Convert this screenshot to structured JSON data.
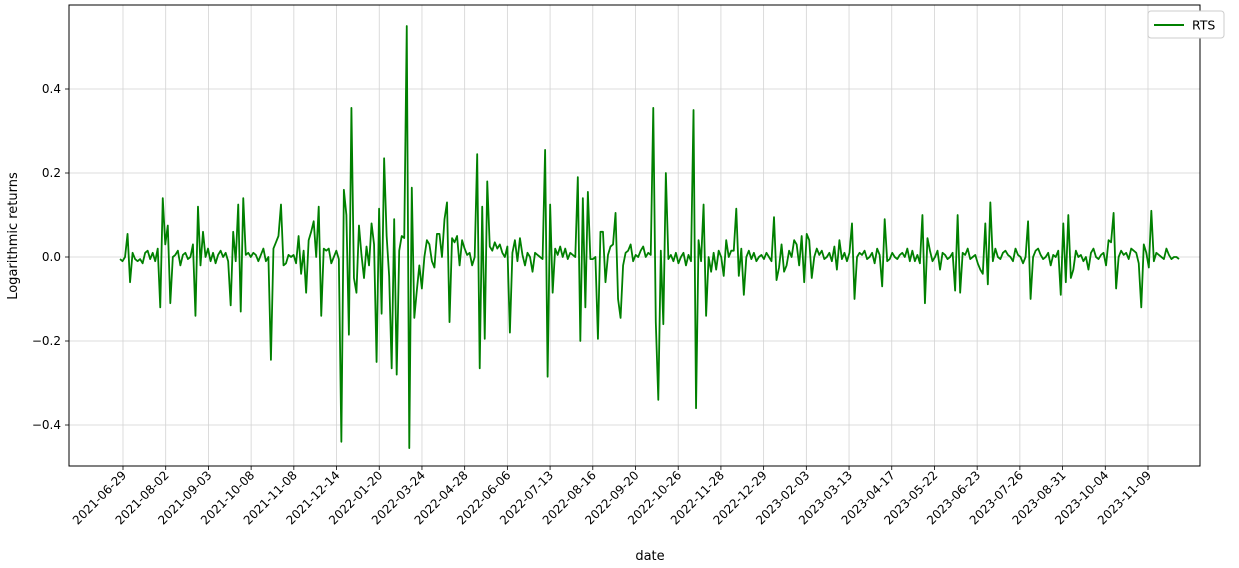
{
  "chart_data": {
    "type": "line",
    "title": "",
    "xlabel": "date",
    "ylabel": "Logarithmic returns",
    "grid": true,
    "legend": "top-right",
    "ylim": [
      -0.5,
      0.55
    ],
    "y_ticks": [
      -0.4,
      -0.2,
      0.0,
      0.2,
      0.4
    ],
    "y_tick_labels": [
      "−0.4",
      "−0.2",
      "0.0",
      "0.2",
      "0.4"
    ],
    "x_tick_labels": [
      "2021-06-29",
      "2021-08-02",
      "2021-09-03",
      "2021-10-08",
      "2021-11-08",
      "2021-12-14",
      "2022-01-20",
      "2022-03-24",
      "2022-04-28",
      "2022-06-06",
      "2022-07-13",
      "2022-08-16",
      "2022-09-20",
      "2022-10-26",
      "2022-11-28",
      "2022-12-29",
      "2023-02-03",
      "2023-03-13",
      "2023-04-17",
      "2023-05-22",
      "2023-06-23",
      "2023-07-26",
      "2023-08-31",
      "2023-10-04",
      "2023-11-09"
    ],
    "series": [
      {
        "name": "RTS",
        "color": "#008000",
        "values": [
          -0.005,
          -0.01,
          0.0,
          0.055,
          -0.06,
          0.01,
          -0.005,
          -0.01,
          -0.005,
          -0.015,
          0.01,
          0.015,
          -0.005,
          0.01,
          -0.01,
          0.02,
          -0.12,
          0.14,
          0.03,
          0.075,
          -0.11,
          0.0,
          0.005,
          0.015,
          -0.02,
          0.005,
          0.01,
          -0.005,
          0.0,
          0.03,
          -0.14,
          0.12,
          -0.02,
          0.06,
          0.0,
          0.02,
          -0.01,
          0.01,
          -0.015,
          0.005,
          0.015,
          0.0,
          0.01,
          -0.01,
          -0.115,
          0.06,
          -0.01,
          0.125,
          -0.13,
          0.14,
          0.005,
          0.01,
          0.0,
          0.01,
          0.005,
          -0.01,
          0.005,
          0.02,
          -0.01,
          0.0,
          -0.245,
          0.02,
          0.035,
          0.05,
          0.125,
          -0.02,
          -0.015,
          0.005,
          0.0,
          0.005,
          -0.015,
          0.05,
          -0.04,
          0.015,
          -0.085,
          0.04,
          0.06,
          0.085,
          0.0,
          0.12,
          -0.14,
          0.02,
          0.015,
          0.02,
          -0.015,
          0.0,
          0.015,
          -0.005,
          -0.44,
          0.16,
          0.1,
          -0.185,
          0.355,
          -0.05,
          -0.085,
          0.075,
          0.005,
          -0.05,
          0.025,
          -0.02,
          0.08,
          0.03,
          -0.25,
          0.115,
          -0.135,
          0.235,
          0.05,
          -0.045,
          -0.265,
          0.09,
          -0.28,
          0.015,
          0.05,
          0.045,
          0.55,
          -0.455,
          0.165,
          -0.145,
          -0.08,
          -0.02,
          -0.075,
          0.0,
          0.04,
          0.03,
          -0.01,
          -0.025,
          0.055,
          0.055,
          0.0,
          0.09,
          0.13,
          -0.155,
          0.045,
          0.035,
          0.05,
          -0.02,
          0.04,
          0.02,
          0.005,
          0.01,
          -0.02,
          0.0,
          0.245,
          -0.265,
          0.12,
          -0.195,
          0.18,
          0.025,
          0.015,
          0.035,
          0.02,
          0.03,
          0.01,
          0.0,
          0.025,
          -0.18,
          0.01,
          0.04,
          -0.01,
          0.045,
          0.005,
          -0.02,
          0.01,
          0.0,
          -0.035,
          0.01,
          0.005,
          0.0,
          -0.005,
          0.255,
          -0.285,
          0.125,
          -0.085,
          0.02,
          0.005,
          0.025,
          0.0,
          0.02,
          -0.005,
          0.01,
          0.005,
          0.0,
          0.19,
          -0.2,
          0.14,
          -0.12,
          0.155,
          -0.005,
          -0.005,
          0.0,
          -0.195,
          0.06,
          0.06,
          -0.06,
          0.005,
          0.025,
          0.03,
          0.105,
          -0.1,
          -0.145,
          -0.02,
          0.01,
          0.015,
          0.03,
          -0.01,
          0.005,
          0.0,
          0.015,
          0.025,
          0.0,
          0.01,
          0.005,
          0.355,
          -0.155,
          -0.34,
          0.015,
          -0.16,
          0.2,
          -0.005,
          0.005,
          -0.01,
          0.01,
          -0.015,
          0.0,
          0.01,
          -0.02,
          0.005,
          -0.01,
          0.35,
          -0.36,
          0.04,
          -0.01,
          0.125,
          -0.14,
          0.0,
          -0.035,
          0.01,
          -0.03,
          0.015,
          0.0,
          -0.045,
          0.04,
          0.0,
          0.015,
          0.015,
          0.115,
          -0.045,
          0.02,
          -0.09,
          0.0,
          0.015,
          -0.005,
          0.01,
          -0.01,
          0.0,
          0.005,
          -0.005,
          0.01,
          0.0,
          -0.01,
          0.095,
          -0.055,
          -0.025,
          0.03,
          -0.035,
          -0.02,
          0.015,
          0.0,
          0.04,
          0.03,
          -0.02,
          0.05,
          -0.06,
          0.055,
          0.04,
          -0.05,
          0.0,
          0.02,
          0.005,
          0.015,
          -0.005,
          0.0,
          0.01,
          -0.01,
          0.025,
          -0.03,
          0.04,
          -0.005,
          0.01,
          -0.01,
          0.01,
          0.08,
          -0.1,
          0.0,
          0.01,
          0.005,
          0.015,
          -0.005,
          0.0,
          0.01,
          -0.015,
          0.02,
          0.005,
          -0.07,
          0.09,
          -0.01,
          -0.005,
          0.01,
          0.0,
          -0.005,
          0.005,
          0.01,
          0.0,
          0.02,
          -0.01,
          0.015,
          -0.01,
          0.005,
          -0.015,
          0.1,
          -0.11,
          0.045,
          0.015,
          -0.01,
          0.0,
          0.015,
          -0.03,
          0.01,
          0.005,
          -0.005,
          0.0,
          0.01,
          -0.08,
          0.1,
          -0.085,
          0.01,
          0.005,
          0.02,
          -0.005,
          0.0,
          0.005,
          -0.015,
          -0.03,
          -0.04,
          0.08,
          -0.065,
          0.13,
          -0.01,
          0.02,
          0.0,
          -0.005,
          0.01,
          0.015,
          0.005,
          0.0,
          -0.01,
          0.02,
          0.005,
          0.0,
          -0.015,
          0.0,
          0.085,
          -0.1,
          0.0,
          0.015,
          0.02,
          0.005,
          -0.005,
          0.0,
          0.01,
          -0.02,
          0.005,
          0.0,
          0.015,
          -0.09,
          0.08,
          -0.06,
          0.1,
          -0.05,
          -0.03,
          0.015,
          0.0,
          0.005,
          -0.01,
          0.0,
          -0.03,
          0.01,
          0.02,
          0.0,
          -0.005,
          0.005,
          0.01,
          -0.02,
          0.04,
          0.035,
          0.105,
          -0.075,
          0.0,
          0.015,
          0.005,
          0.01,
          -0.005,
          0.02,
          0.015,
          0.01,
          -0.015,
          -0.12,
          0.03,
          0.01,
          -0.025,
          0.11,
          -0.01,
          0.01,
          0.005,
          0.0,
          -0.005,
          0.02,
          0.005,
          -0.005,
          0.0,
          0.0,
          -0.005
        ]
      }
    ]
  }
}
